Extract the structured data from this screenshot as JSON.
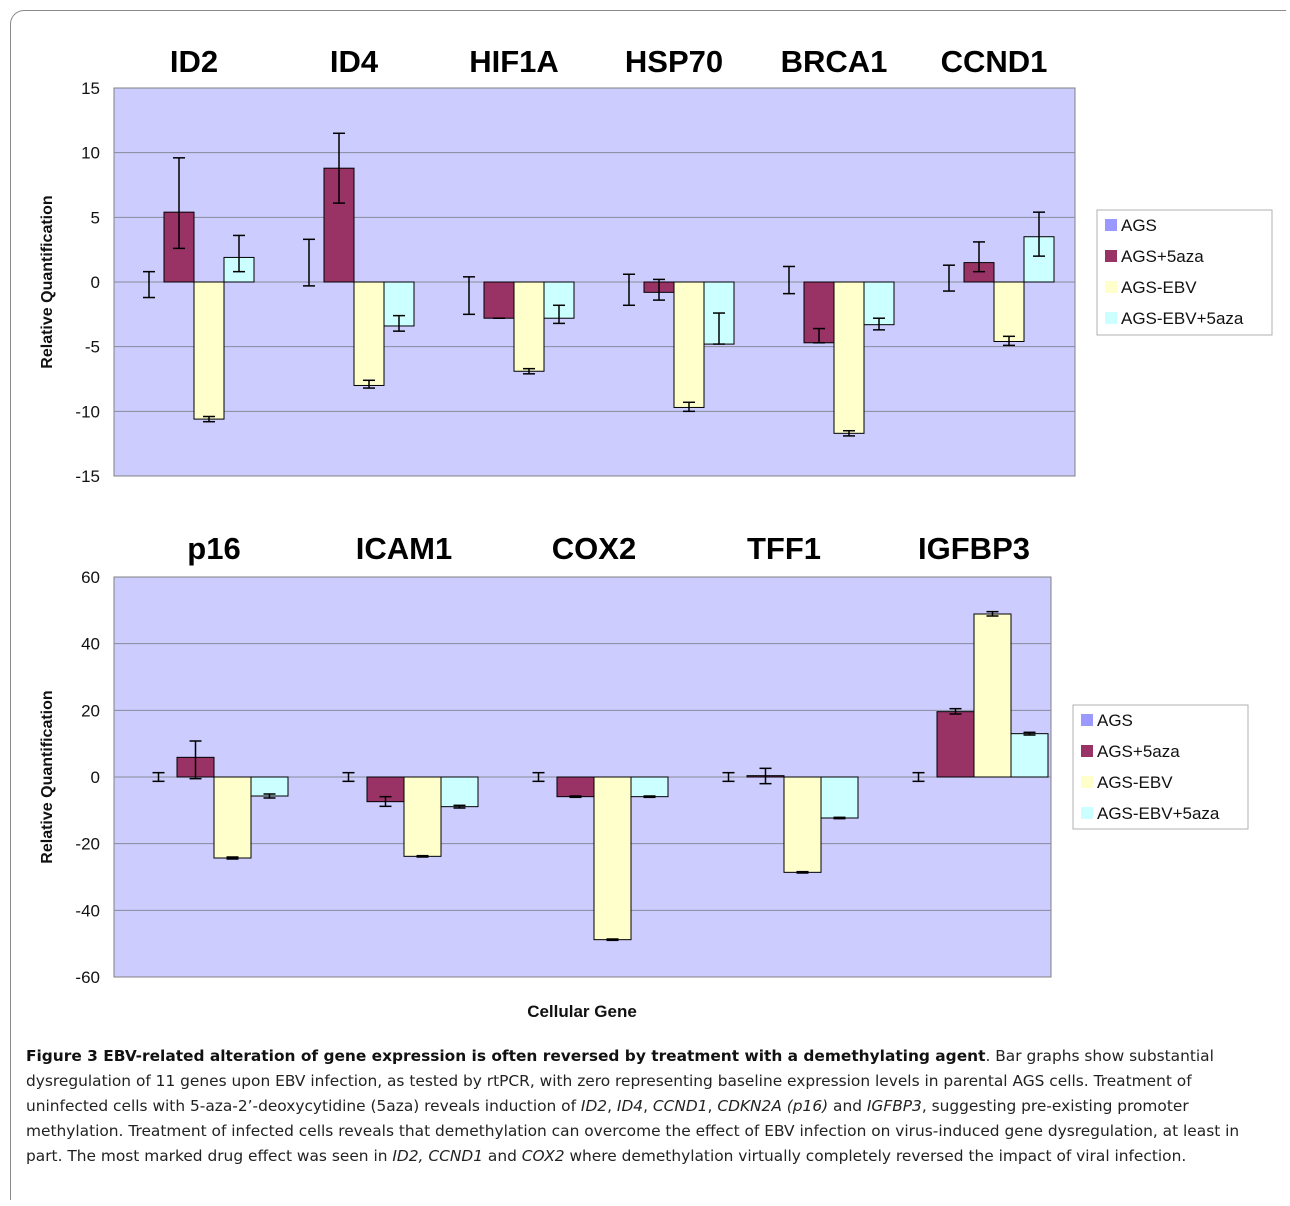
{
  "chart_data": [
    {
      "type": "bar",
      "ylabel": "Relative Quantification",
      "xlabel": "",
      "ylim": [
        -15,
        15
      ],
      "yticks": [
        15,
        10,
        5,
        0,
        -5,
        -10,
        -15
      ],
      "grid": true,
      "legend_position": "right",
      "gene_titles": [
        "ID2",
        "ID4",
        "HIF1A",
        "HSP70",
        "BRCA1",
        "CCND1"
      ],
      "categories": [
        "ID2",
        "ID4",
        "HIF1A",
        "HSP70",
        "BRCA1",
        "CCND1"
      ],
      "series": [
        {
          "name": "AGS",
          "values": [
            0,
            0,
            0,
            0,
            0,
            0
          ],
          "errors": [
            [
              -1.2,
              0.8
            ],
            [
              -0.3,
              3.3
            ],
            [
              -2.5,
              0.4
            ],
            [
              -1.8,
              0.6
            ],
            [
              -0.9,
              1.2
            ],
            [
              -0.7,
              1.3
            ]
          ]
        },
        {
          "name": "AGS+5aza",
          "values": [
            5.4,
            8.8,
            -2.8,
            -0.8,
            -4.7,
            1.5
          ],
          "errors": [
            [
              2.6,
              9.6
            ],
            [
              6.1,
              11.5
            ],
            [
              -2.8,
              -2.8
            ],
            [
              -1.4,
              0.2
            ],
            [
              -3.6,
              -4.7
            ],
            [
              0.8,
              3.1
            ]
          ]
        },
        {
          "name": "AGS-EBV",
          "values": [
            -10.6,
            -8.0,
            -6.9,
            -9.7,
            -11.7,
            -4.6
          ],
          "errors": [
            [
              -10.8,
              -10.4
            ],
            [
              -8.2,
              -7.6
            ],
            [
              -7.1,
              -6.7
            ],
            [
              -10.0,
              -9.3
            ],
            [
              -11.9,
              -11.5
            ],
            [
              -4.9,
              -4.2
            ]
          ]
        },
        {
          "name": "AGS-EBV+5aza",
          "values": [
            1.9,
            -3.4,
            -2.8,
            -4.8,
            -3.3,
            3.5
          ],
          "errors": [
            [
              0.8,
              3.6
            ],
            [
              -3.8,
              -2.6
            ],
            [
              -3.2,
              -1.8
            ],
            [
              -4.8,
              -2.4
            ],
            [
              -3.7,
              -2.8
            ],
            [
              2.0,
              5.4
            ]
          ]
        }
      ],
      "colors": [
        "#9999ff",
        "#993366",
        "#ffffcc",
        "#ccffff"
      ]
    },
    {
      "type": "bar",
      "ylabel": "Relative Quantification",
      "xlabel": "Cellular Gene",
      "ylim": [
        -60,
        60
      ],
      "yticks": [
        60,
        40,
        20,
        0,
        -20,
        -40,
        -60
      ],
      "grid": true,
      "legend_position": "right",
      "gene_titles": [
        "p16",
        "ICAM1",
        "COX2",
        "TFF1",
        "IGFBP3"
      ],
      "categories": [
        "p16",
        "ICAM1",
        "COX2",
        "TFF1",
        "IGFBP3"
      ],
      "series": [
        {
          "name": "AGS",
          "values": [
            0,
            0,
            0,
            0,
            0
          ],
          "errors": [
            [
              -1.3,
              1.3
            ],
            [
              -1.3,
              1.3
            ],
            [
              -1.3,
              1.3
            ],
            [
              -1.3,
              1.3
            ],
            [
              -1.3,
              1.3
            ]
          ]
        },
        {
          "name": "AGS+5aza",
          "values": [
            5.9,
            -7.4,
            -5.9,
            0.4,
            19.6
          ],
          "errors": [
            [
              -0.5,
              10.8
            ],
            [
              -8.8,
              -5.9
            ],
            [
              -6.1,
              -5.7
            ],
            [
              -2.0,
              2.6
            ],
            [
              18.9,
              20.5
            ]
          ]
        },
        {
          "name": "AGS-EBV",
          "values": [
            -24.3,
            -23.8,
            -48.8,
            -28.6,
            48.9
          ],
          "errors": [
            [
              -24.6,
              -24.0
            ],
            [
              -24.0,
              -23.6
            ],
            [
              -49.0,
              -48.6
            ],
            [
              -28.8,
              -28.4
            ],
            [
              48.3,
              49.6
            ]
          ]
        },
        {
          "name": "AGS-EBV+5aza",
          "values": [
            -5.7,
            -8.9,
            -5.9,
            -12.3,
            13.0
          ],
          "errors": [
            [
              -6.3,
              -5.1
            ],
            [
              -9.3,
              -8.5
            ],
            [
              -6.1,
              -5.7
            ],
            [
              -12.5,
              -12.1
            ],
            [
              12.6,
              13.4
            ]
          ]
        }
      ],
      "colors": [
        "#9999ff",
        "#993366",
        "#ffffcc",
        "#ccffff"
      ]
    }
  ],
  "caption": {
    "label": "Figure 3 EBV-related alteration of gene expression is often reversed by treatment with a demethylating agent",
    "p1": ". Bar graphs show substantial dysregulation of 11 genes upon EBV infection, as tested by rtPCR, with zero representing baseline expression levels in parental AGS cells. Treatment of uninfected cells with 5-aza-2’-deoxycytidine (5aza) reveals induction of ",
    "g1": "ID2",
    "s1": ", ",
    "g2": "ID4",
    "s2": ", ",
    "g3": "CCND1",
    "s3": ", ",
    "g4": "CDKN2A (p16)",
    "s4": " and ",
    "g5": "IGFBP3",
    "p2": ", suggesting pre-existing promoter methylation. Treatment of infected cells reveals that demethylation can overcome the effect of EBV infection on virus-induced gene dysregulation, at least in part. The most marked drug effect was seen in ",
    "g6": "ID2, CCND1",
    "s5": " and ",
    "g7": "COX2",
    "p3": " where demethylation virtually completely reversed the impact of viral infection."
  }
}
